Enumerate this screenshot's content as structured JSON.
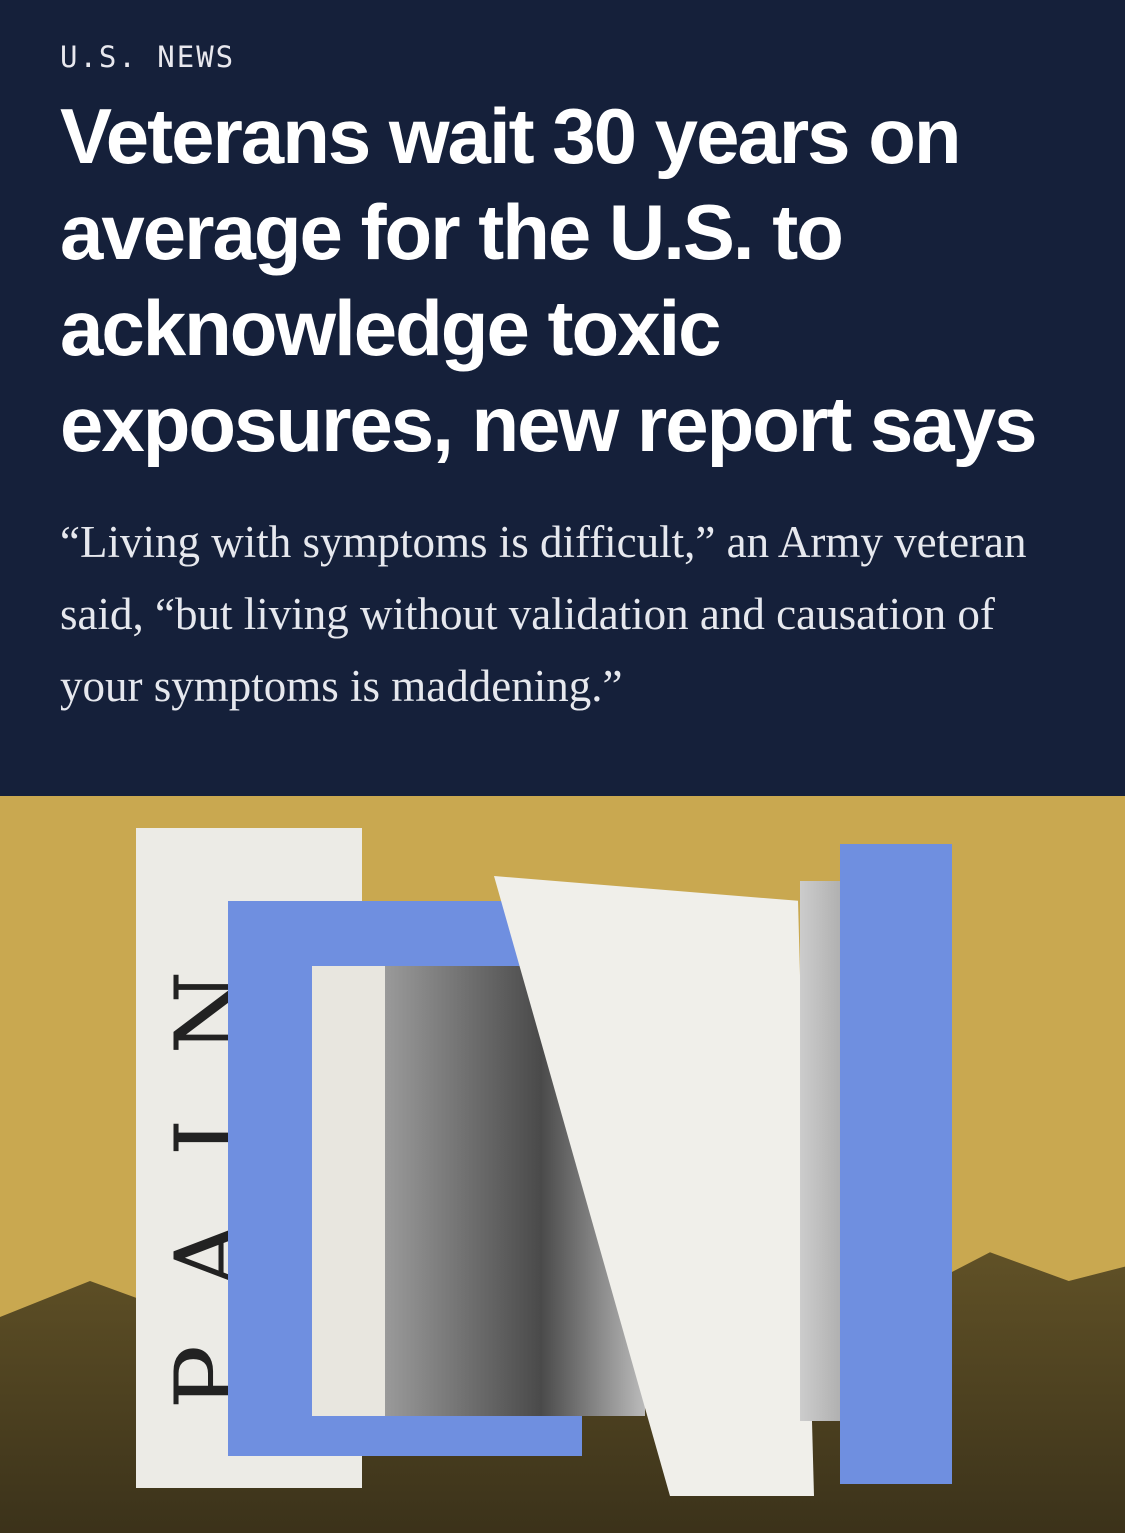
{
  "kicker": "U.S. NEWS",
  "headline": "Veterans wait 30 years on average for the U.S. to acknowledge toxic exposures, new report says",
  "dek": "“Living with symptoms is difficult,” an Army veteran said, “but living without validation and causation of your symptoms is maddening.”",
  "image": {
    "collage_lettering": "PAIN",
    "colors": {
      "background": "#c9a850",
      "blue": "#6f8fe0"
    }
  }
}
